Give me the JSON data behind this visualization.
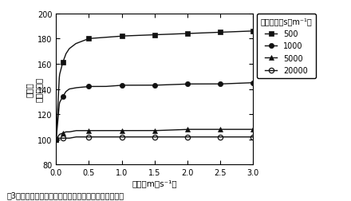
{
  "title_caption": "図3　貯蔵果実の蒸散量に対する風速、果皮抵抗の影響",
  "ylabel_lines": [
    "蒸散量",
    "（相対値）"
  ],
  "xlabel": "風速（m・s⁻¹）",
  "legend_title": "果皮抵抗（s・m⁻¹）",
  "ylim": [
    80,
    200
  ],
  "xlim": [
    0,
    3
  ],
  "yticks": [
    80,
    100,
    120,
    140,
    160,
    180,
    200
  ],
  "xticks": [
    0,
    0.5,
    1,
    1.5,
    2,
    2.5,
    3
  ],
  "series": [
    {
      "label": "500",
      "marker": "s",
      "color": "#111111",
      "fillstyle": "full",
      "x": [
        0,
        0.05,
        0.1,
        0.15,
        0.2,
        0.3,
        0.5,
        0.75,
        1.0,
        1.5,
        2.0,
        2.5,
        3.0
      ],
      "y": [
        100,
        151,
        161,
        168,
        172,
        176,
        180,
        181,
        182,
        183,
        184,
        185,
        186
      ]
    },
    {
      "label": "1000",
      "marker": "o",
      "color": "#111111",
      "fillstyle": "full",
      "x": [
        0,
        0.05,
        0.1,
        0.15,
        0.2,
        0.3,
        0.5,
        0.75,
        1.0,
        1.5,
        2.0,
        2.5,
        3.0
      ],
      "y": [
        100,
        129,
        134,
        138,
        140,
        141,
        142,
        142,
        143,
        143,
        144,
        144,
        145
      ]
    },
    {
      "label": "5000",
      "marker": "^",
      "color": "#111111",
      "fillstyle": "full",
      "x": [
        0,
        0.05,
        0.1,
        0.15,
        0.2,
        0.3,
        0.5,
        0.75,
        1.0,
        1.5,
        2.0,
        2.5,
        3.0
      ],
      "y": [
        100,
        104,
        105,
        106,
        106,
        107,
        107,
        107,
        107,
        107,
        108,
        108,
        108
      ]
    },
    {
      "label": "20000",
      "marker": "o",
      "color": "#111111",
      "fillstyle": "none",
      "x": [
        0,
        0.05,
        0.1,
        0.15,
        0.2,
        0.3,
        0.5,
        0.75,
        1.0,
        1.5,
        2.0,
        2.5,
        3.0
      ],
      "y": [
        100,
        101,
        101,
        101,
        101,
        102,
        102,
        102,
        102,
        102,
        102,
        102,
        102
      ]
    }
  ],
  "marker_x_positions": [
    0,
    0.1,
    0.5,
    1.0,
    1.5,
    2.0,
    2.5,
    3.0
  ],
  "background_color": "#ffffff"
}
